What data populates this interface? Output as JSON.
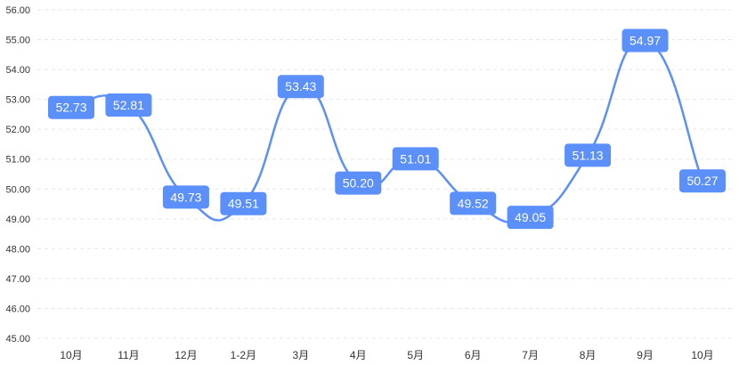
{
  "chart_data": {
    "type": "line",
    "title": "",
    "xlabel": "",
    "ylabel": "",
    "categories": [
      "10月",
      "11月",
      "12月",
      "1-2月",
      "3月",
      "4月",
      "5月",
      "6月",
      "7月",
      "8月",
      "9月",
      "10月"
    ],
    "series": [
      {
        "values": [
          52.73,
          52.81,
          49.73,
          49.51,
          53.43,
          50.2,
          51.01,
          49.52,
          49.05,
          51.13,
          54.97,
          50.27
        ],
        "labels": [
          "52.73",
          "52.81",
          "49.73",
          "49.51",
          "53.43",
          "50.20",
          "51.01",
          "49.52",
          "49.05",
          "51.13",
          "54.97",
          "50.27"
        ]
      }
    ],
    "ylim": [
      45,
      56
    ],
    "yticks": [
      "45.00",
      "46.00",
      "47.00",
      "48.00",
      "49.00",
      "50.00",
      "51.00",
      "52.00",
      "53.00",
      "54.00",
      "55.00",
      "56.00"
    ],
    "grid": true,
    "line_color": "#5b8ff9",
    "label_bg_color": "#5b8ff9",
    "grid_color": "#e8e8e8",
    "smooth": true
  }
}
